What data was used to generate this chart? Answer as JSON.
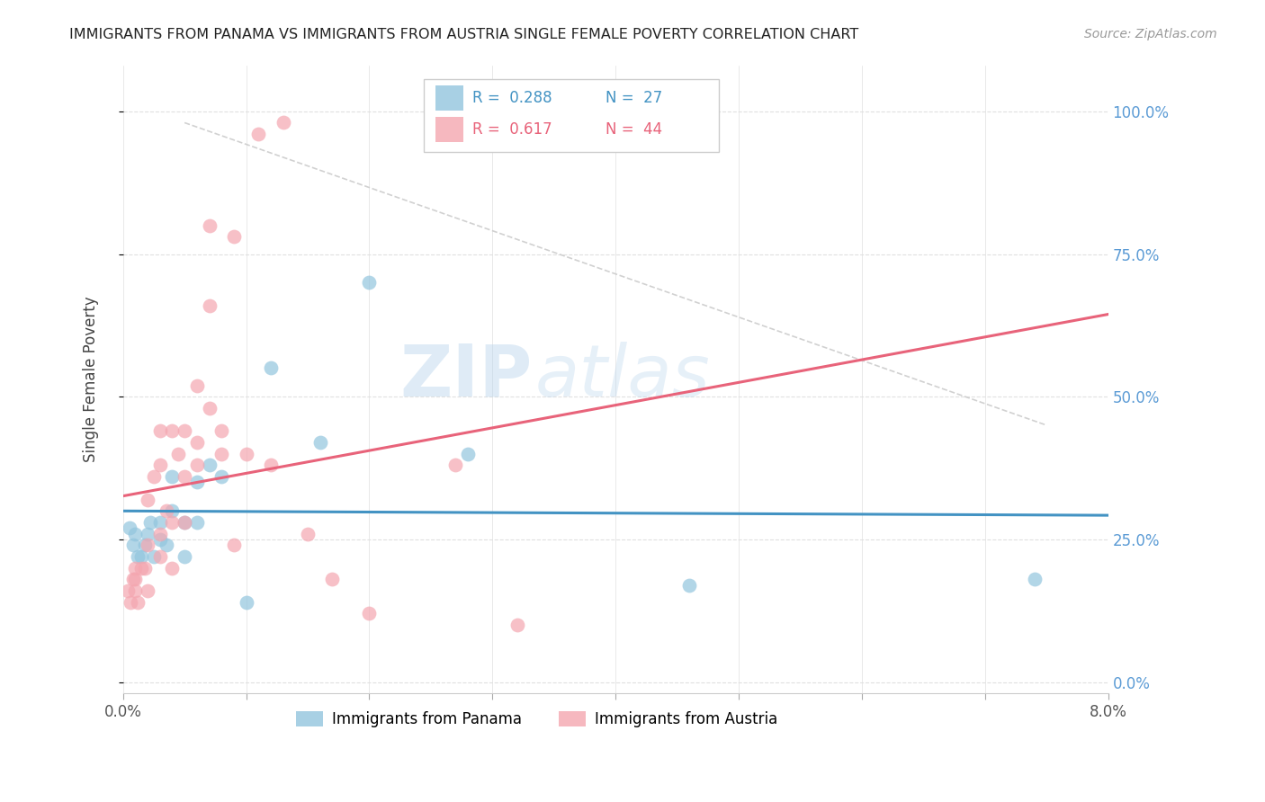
{
  "title": "IMMIGRANTS FROM PANAMA VS IMMIGRANTS FROM AUSTRIA SINGLE FEMALE POVERTY CORRELATION CHART",
  "source": "Source: ZipAtlas.com",
  "ylabel": "Single Female Poverty",
  "right_yticks": [
    0.0,
    0.25,
    0.5,
    0.75,
    1.0
  ],
  "right_yticklabels": [
    "0.0%",
    "25.0%",
    "50.0%",
    "75.0%",
    "100.0%"
  ],
  "xlim": [
    0.0,
    0.08
  ],
  "ylim": [
    -0.02,
    1.08
  ],
  "legend_panama": "Immigrants from Panama",
  "legend_austria": "Immigrants from Austria",
  "R_panama": 0.288,
  "N_panama": 27,
  "R_austria": 0.617,
  "N_austria": 44,
  "color_panama": "#92c5de",
  "color_austria": "#f4a6b0",
  "color_panama_line": "#4393c3",
  "color_austria_line": "#e8637a",
  "watermark_zip": "ZIP",
  "watermark_atlas": "atlas",
  "panama_x": [
    0.0005,
    0.0008,
    0.001,
    0.0012,
    0.0015,
    0.0018,
    0.002,
    0.0022,
    0.0025,
    0.003,
    0.003,
    0.0035,
    0.004,
    0.004,
    0.005,
    0.005,
    0.006,
    0.006,
    0.007,
    0.008,
    0.01,
    0.012,
    0.016,
    0.02,
    0.028,
    0.046,
    0.074
  ],
  "panama_y": [
    0.27,
    0.24,
    0.26,
    0.22,
    0.22,
    0.24,
    0.26,
    0.28,
    0.22,
    0.25,
    0.28,
    0.24,
    0.36,
    0.3,
    0.28,
    0.22,
    0.35,
    0.28,
    0.38,
    0.36,
    0.14,
    0.55,
    0.42,
    0.7,
    0.4,
    0.17,
    0.18
  ],
  "austria_x": [
    0.0004,
    0.0006,
    0.0008,
    0.001,
    0.001,
    0.001,
    0.0012,
    0.0015,
    0.0018,
    0.002,
    0.002,
    0.002,
    0.0025,
    0.003,
    0.003,
    0.003,
    0.003,
    0.0035,
    0.004,
    0.004,
    0.004,
    0.0045,
    0.005,
    0.005,
    0.005,
    0.006,
    0.006,
    0.006,
    0.007,
    0.007,
    0.007,
    0.008,
    0.008,
    0.009,
    0.009,
    0.01,
    0.011,
    0.012,
    0.013,
    0.015,
    0.017,
    0.02,
    0.027,
    0.032
  ],
  "austria_y": [
    0.16,
    0.14,
    0.18,
    0.18,
    0.16,
    0.2,
    0.14,
    0.2,
    0.2,
    0.24,
    0.32,
    0.16,
    0.36,
    0.26,
    0.38,
    0.44,
    0.22,
    0.3,
    0.28,
    0.44,
    0.2,
    0.4,
    0.36,
    0.44,
    0.28,
    0.42,
    0.52,
    0.38,
    0.48,
    0.66,
    0.8,
    0.44,
    0.4,
    0.78,
    0.24,
    0.4,
    0.96,
    0.38,
    0.98,
    0.26,
    0.18,
    0.12,
    0.38,
    0.1
  ],
  "grid_color": "#e0e0e0",
  "spine_color": "#cccccc"
}
